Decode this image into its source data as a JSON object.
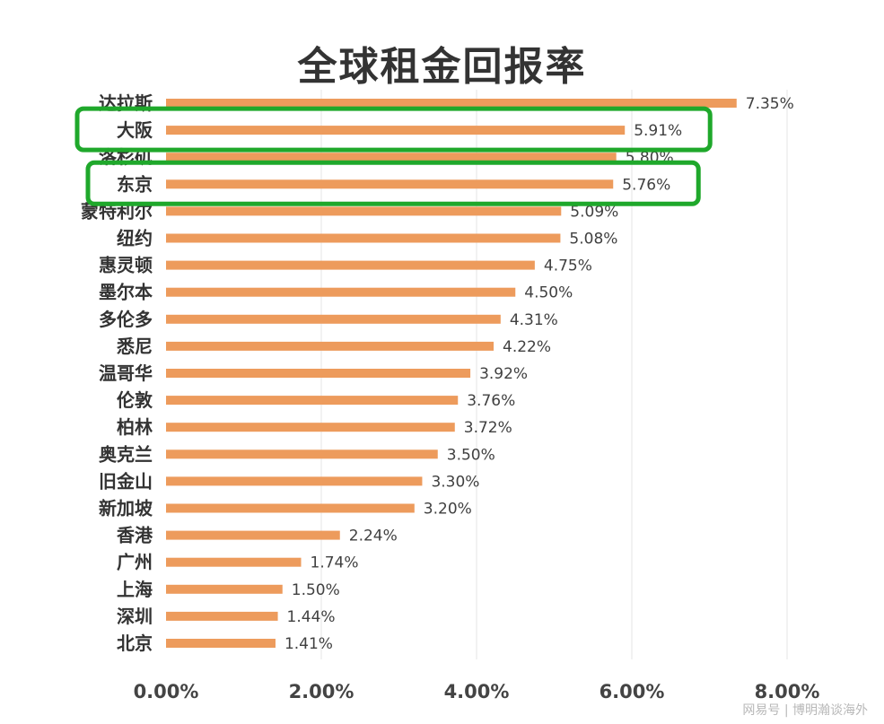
{
  "chart_data": {
    "type": "bar",
    "orientation": "horizontal",
    "title": "全球租金回报率",
    "categories": [
      "达拉斯",
      "大阪",
      "洛杉矶",
      "东京",
      "蒙特利尔",
      "纽约",
      "惠灵顿",
      "墨尔本",
      "多伦多",
      "悉尼",
      "温哥华",
      "伦敦",
      "柏林",
      "奥克兰",
      "旧金山",
      "新加坡",
      "香港",
      "广州",
      "上海",
      "深圳",
      "北京"
    ],
    "values": [
      7.35,
      5.91,
      5.8,
      5.76,
      5.09,
      5.08,
      4.75,
      4.5,
      4.31,
      4.22,
      3.92,
      3.76,
      3.72,
      3.5,
      3.3,
      3.2,
      2.24,
      1.74,
      1.5,
      1.44,
      1.41
    ],
    "value_labels": [
      "7.35%",
      "5.91%",
      "5.80%",
      "5.76%",
      "5.09%",
      "5.08%",
      "4.75%",
      "4.50%",
      "4.31%",
      "4.22%",
      "3.92%",
      "3.76%",
      "3.72%",
      "3.50%",
      "3.30%",
      "3.20%",
      "2.24%",
      "1.74%",
      "1.50%",
      "1.44%",
      "1.41%"
    ],
    "xlim": [
      0,
      8
    ],
    "xticks": [
      0,
      2,
      4,
      6,
      8
    ],
    "xtick_labels": [
      "0.00%",
      "2.00%",
      "4.00%",
      "6.00%",
      "8.00%"
    ],
    "highlighted": [
      "大阪",
      "东京"
    ],
    "colors": {
      "bar": "#ED9B5C",
      "highlight": "#1FA82B",
      "grid": "#e6e6e6"
    }
  },
  "watermark": "网易号 | 博明瀚谈海外"
}
